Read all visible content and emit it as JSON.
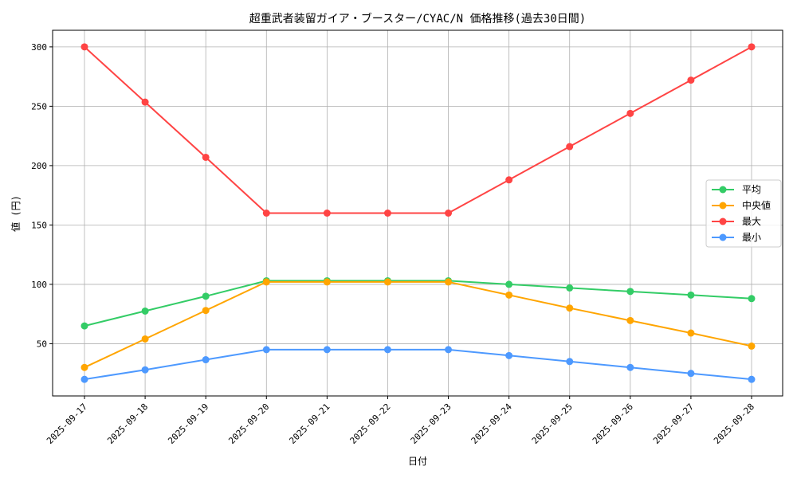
{
  "chart_data": {
    "type": "line",
    "title": "超重武者装留ガイア・ブースター/CYAC/N 価格推移(過去30日間)",
    "xlabel": "日付",
    "ylabel": "値 (円)",
    "categories": [
      "2025-09-17",
      "2025-09-18",
      "2025-09-19",
      "2025-09-20",
      "2025-09-21",
      "2025-09-22",
      "2025-09-23",
      "2025-09-24",
      "2025-09-25",
      "2025-09-26",
      "2025-09-27",
      "2025-09-28"
    ],
    "ylim": [
      6,
      314
    ],
    "yticks": [
      50,
      100,
      150,
      200,
      250,
      300
    ],
    "grid": true,
    "legend_position": "center-right",
    "series": [
      {
        "name": "平均",
        "color": "#33cc66",
        "values": [
          65,
          77.5,
          90,
          103,
          103,
          103,
          103,
          100,
          97,
          94,
          91,
          88
        ]
      },
      {
        "name": "中央値",
        "color": "#ffa500",
        "values": [
          30,
          54,
          78,
          102,
          102,
          102,
          102,
          91,
          80,
          69.5,
          59,
          48
        ]
      },
      {
        "name": "最大",
        "color": "#ff4444",
        "values": [
          300,
          253.5,
          207,
          160,
          160,
          160,
          160,
          188,
          216,
          244,
          272,
          300
        ]
      },
      {
        "name": "最小",
        "color": "#4d99ff",
        "values": [
          20,
          28,
          36.5,
          45,
          45,
          45,
          45,
          40,
          35,
          30,
          25,
          20
        ]
      }
    ]
  }
}
